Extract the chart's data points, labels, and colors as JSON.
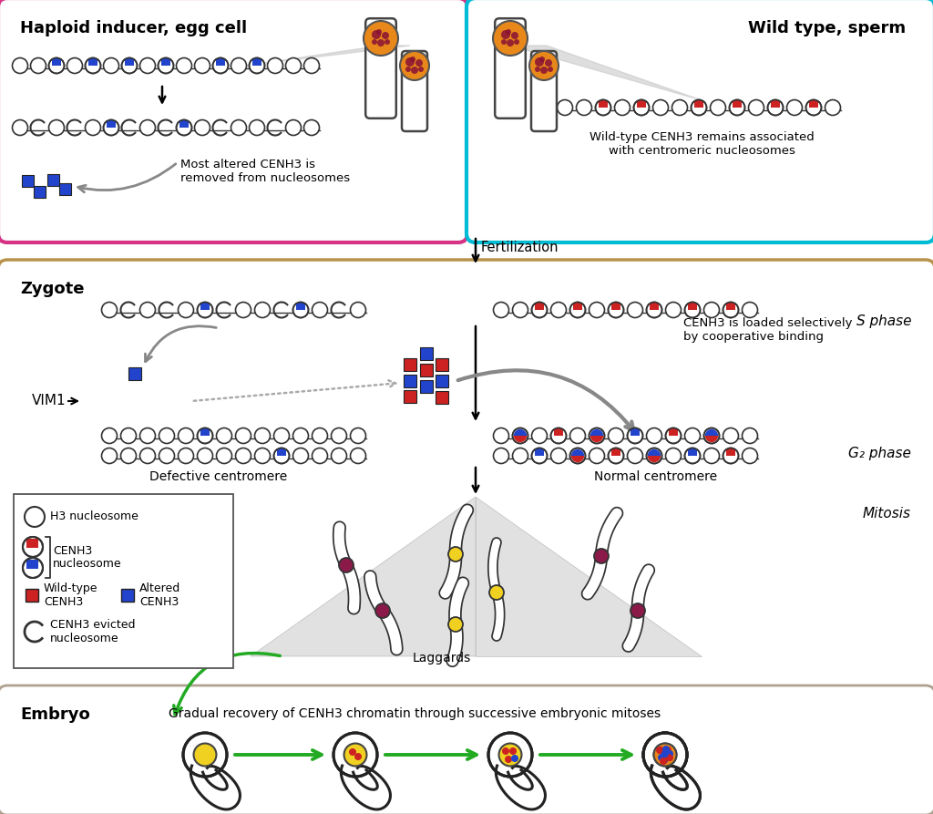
{
  "bg_color": "#ffffff",
  "panel_top_left_border": "#d63384",
  "panel_top_right_border": "#00bcd4",
  "panel_middle_border": "#b8924a",
  "panel_bottom_border": "#b0a090",
  "text_color": "#000000",
  "red_color": "#cc2222",
  "blue_color": "#2244cc",
  "orange_color": "#e8881a",
  "yellow_color": "#f0d020",
  "dark_red_color": "#8b1a4a",
  "green_arrow_color": "#22aa22",
  "gray_arrow_color": "#888888",
  "title_left": "Haploid inducer, egg cell",
  "title_right": "Wild type, sperm",
  "title_zygote": "Zygote",
  "title_embryo": "Embryo",
  "label_fertilization": "Fertilization",
  "label_vim1": "VIM1",
  "label_sphase": "S phase",
  "label_g2phase": "G₂ phase",
  "label_mitosis": "Mitosis",
  "label_laggards": "Laggards",
  "label_defective": "Defective centromere",
  "label_normal": "Normal centromere",
  "label_most_altered": "Most altered CENH3 is\nremoved from nucleosomes",
  "label_wildtype_cenh3": "Wild-type CENH3 remains associated\nwith centromeric nucleosomes",
  "label_cenh3_loaded": "CENH3 is loaded selectively\nby cooperative binding",
  "label_gradual": "Gradual recovery of CENH3 chromatin through successive embryonic mitoses",
  "legend_h3": "H3 nucleosome",
  "legend_cenh3": "CENH3\nnucleosome",
  "legend_wildtype": "Wild-type\nCENH3",
  "legend_altered": "Altered\nCENH3",
  "legend_evicted": "CENH3 evicted\nnucleosome"
}
